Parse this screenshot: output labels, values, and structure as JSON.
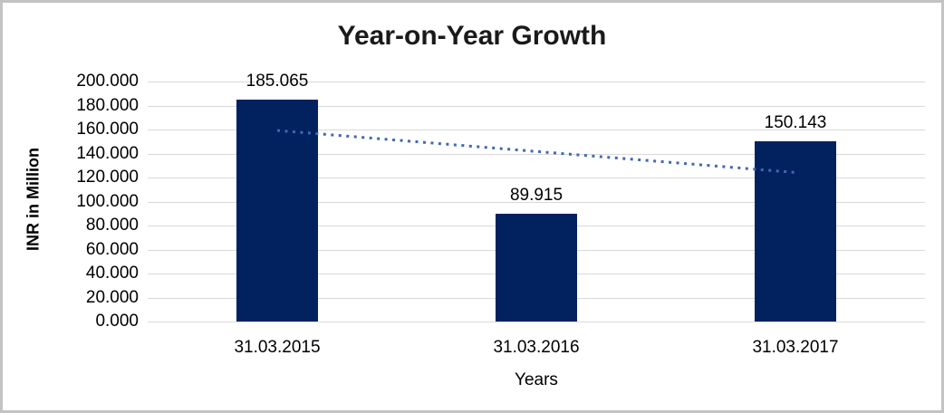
{
  "chart_data": {
    "type": "bar",
    "title": "Year-on-Year Growth",
    "xlabel": "Years",
    "ylabel": "INR in Million",
    "categories": [
      "31.03.2015",
      "31.03.2016",
      "31.03.2017"
    ],
    "values": [
      185.065,
      89.915,
      150.143
    ],
    "data_labels": [
      "185.065",
      "89.915",
      "150.143"
    ],
    "ylim": [
      0,
      200
    ],
    "ytick_step": 20,
    "ytick_labels": [
      "200.000",
      "180.000",
      "160.000",
      "140.000",
      "120.000",
      "100.000",
      "80.000",
      "60.000",
      "40.000",
      "20.000",
      "0.000"
    ],
    "grid": true,
    "legend": "none",
    "bar_color": "#01225f",
    "gridline_color": "#d9d9d9",
    "trendline": {
      "type": "linear",
      "style": "dotted",
      "color": "#4169b1",
      "start_value": 159.2,
      "end_value": 124.2
    }
  }
}
